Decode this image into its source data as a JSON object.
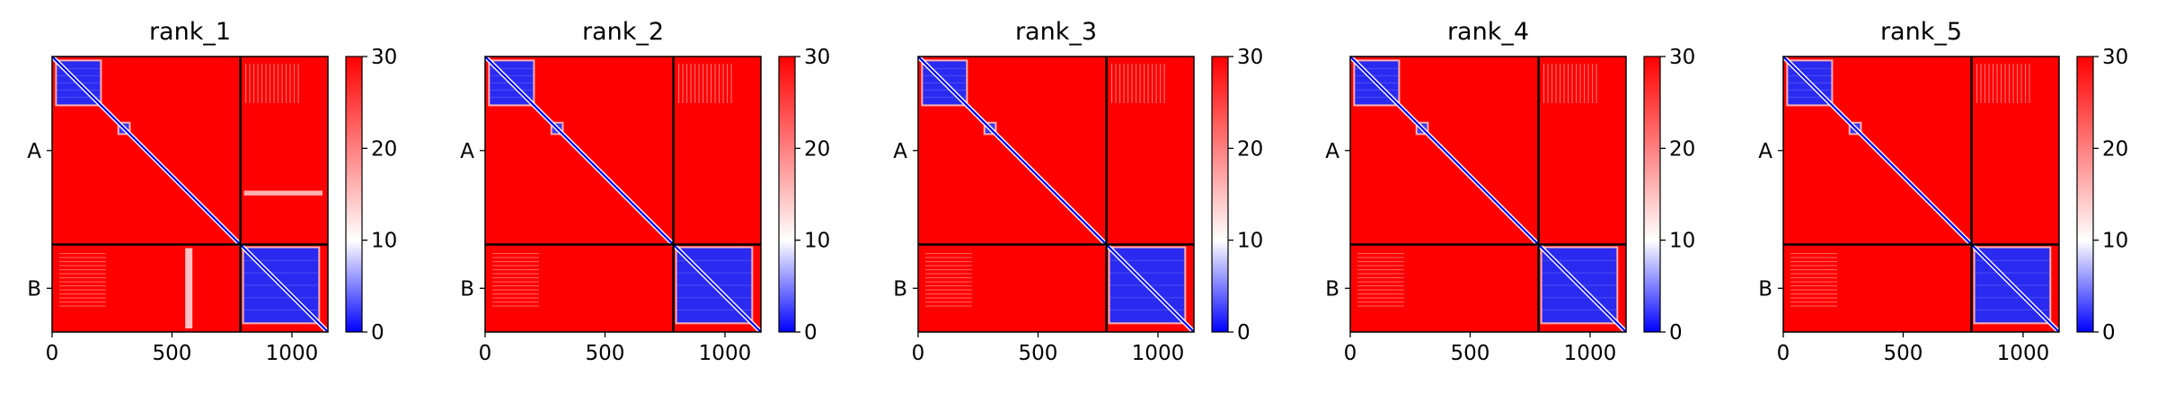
{
  "chart_data": [
    {
      "type": "heatmap",
      "title": "rank_1",
      "x_ticks": [
        0,
        500,
        1000
      ],
      "y_labels": [
        "A",
        "B"
      ],
      "xlim": [
        0,
        1150
      ],
      "chain_boundary": 785,
      "colorbar": {
        "min": 0,
        "max": 30,
        "ticks": [
          0,
          10,
          20,
          30
        ],
        "colors": [
          "#0000ff",
          "#ffffff",
          "#ff0000"
        ]
      },
      "low_error_blocks": [
        [
          20,
          200
        ],
        [
          280,
          320
        ],
        [
          800,
          1110
        ]
      ],
      "faint_bands": {
        "x": [
          555,
          585
        ],
        "y": [
          560,
          580
        ]
      }
    },
    {
      "type": "heatmap",
      "title": "rank_2",
      "x_ticks": [
        0,
        500,
        1000
      ],
      "y_labels": [
        "A",
        "B"
      ],
      "xlim": [
        0,
        1150
      ],
      "chain_boundary": 785,
      "colorbar": {
        "min": 0,
        "max": 30,
        "ticks": [
          0,
          10,
          20,
          30
        ],
        "colors": [
          "#0000ff",
          "#ffffff",
          "#ff0000"
        ]
      },
      "low_error_blocks": [
        [
          20,
          200
        ],
        [
          280,
          320
        ],
        [
          800,
          1110
        ]
      ],
      "faint_bands": {
        "x": [],
        "y": []
      }
    },
    {
      "type": "heatmap",
      "title": "rank_3",
      "x_ticks": [
        0,
        500,
        1000
      ],
      "y_labels": [
        "A",
        "B"
      ],
      "xlim": [
        0,
        1150
      ],
      "chain_boundary": 785,
      "colorbar": {
        "min": 0,
        "max": 30,
        "ticks": [
          0,
          10,
          20,
          30
        ],
        "colors": [
          "#0000ff",
          "#ffffff",
          "#ff0000"
        ]
      },
      "low_error_blocks": [
        [
          20,
          200
        ],
        [
          280,
          320
        ],
        [
          800,
          1110
        ]
      ],
      "faint_bands": {
        "x": [],
        "y": []
      }
    },
    {
      "type": "heatmap",
      "title": "rank_4",
      "x_ticks": [
        0,
        500,
        1000
      ],
      "y_labels": [
        "A",
        "B"
      ],
      "xlim": [
        0,
        1150
      ],
      "chain_boundary": 785,
      "colorbar": {
        "min": 0,
        "max": 30,
        "ticks": [
          0,
          10,
          20,
          30
        ],
        "colors": [
          "#0000ff",
          "#ffffff",
          "#ff0000"
        ]
      },
      "low_error_blocks": [
        [
          20,
          200
        ],
        [
          280,
          320
        ],
        [
          800,
          1110
        ]
      ],
      "faint_bands": {
        "x": [],
        "y": []
      }
    },
    {
      "type": "heatmap",
      "title": "rank_5",
      "x_ticks": [
        0,
        500,
        1000
      ],
      "y_labels": [
        "A",
        "B"
      ],
      "xlim": [
        0,
        1150
      ],
      "chain_boundary": 785,
      "colorbar": {
        "min": 0,
        "max": 30,
        "ticks": [
          0,
          10,
          20,
          30
        ],
        "colors": [
          "#0000ff",
          "#ffffff",
          "#ff0000"
        ]
      },
      "low_error_blocks": [
        [
          20,
          200
        ],
        [
          280,
          320
        ],
        [
          800,
          1110
        ]
      ],
      "faint_bands": {
        "x": [],
        "y": []
      }
    }
  ]
}
